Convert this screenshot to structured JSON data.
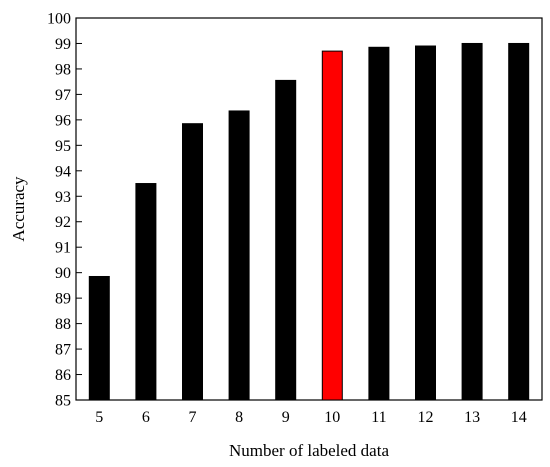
{
  "chart_data": {
    "type": "bar",
    "title": "",
    "xlabel": "Number of labeled data",
    "ylabel": "Accuracy",
    "categories": [
      "5",
      "6",
      "7",
      "8",
      "9",
      "10",
      "11",
      "12",
      "13",
      "14"
    ],
    "values": [
      89.85,
      93.5,
      95.85,
      96.35,
      97.55,
      98.7,
      98.85,
      98.9,
      99.0,
      99.0
    ],
    "ylim": [
      85,
      100
    ],
    "yticks": [
      85,
      86,
      87,
      88,
      89,
      90,
      91,
      92,
      93,
      94,
      95,
      96,
      97,
      98,
      99,
      100
    ],
    "grid": false,
    "legend": "none",
    "colors": {
      "default_bar": "#000000",
      "highlight_bar": "#ff0000",
      "axis": "#000000"
    },
    "highlight_category": "10"
  }
}
